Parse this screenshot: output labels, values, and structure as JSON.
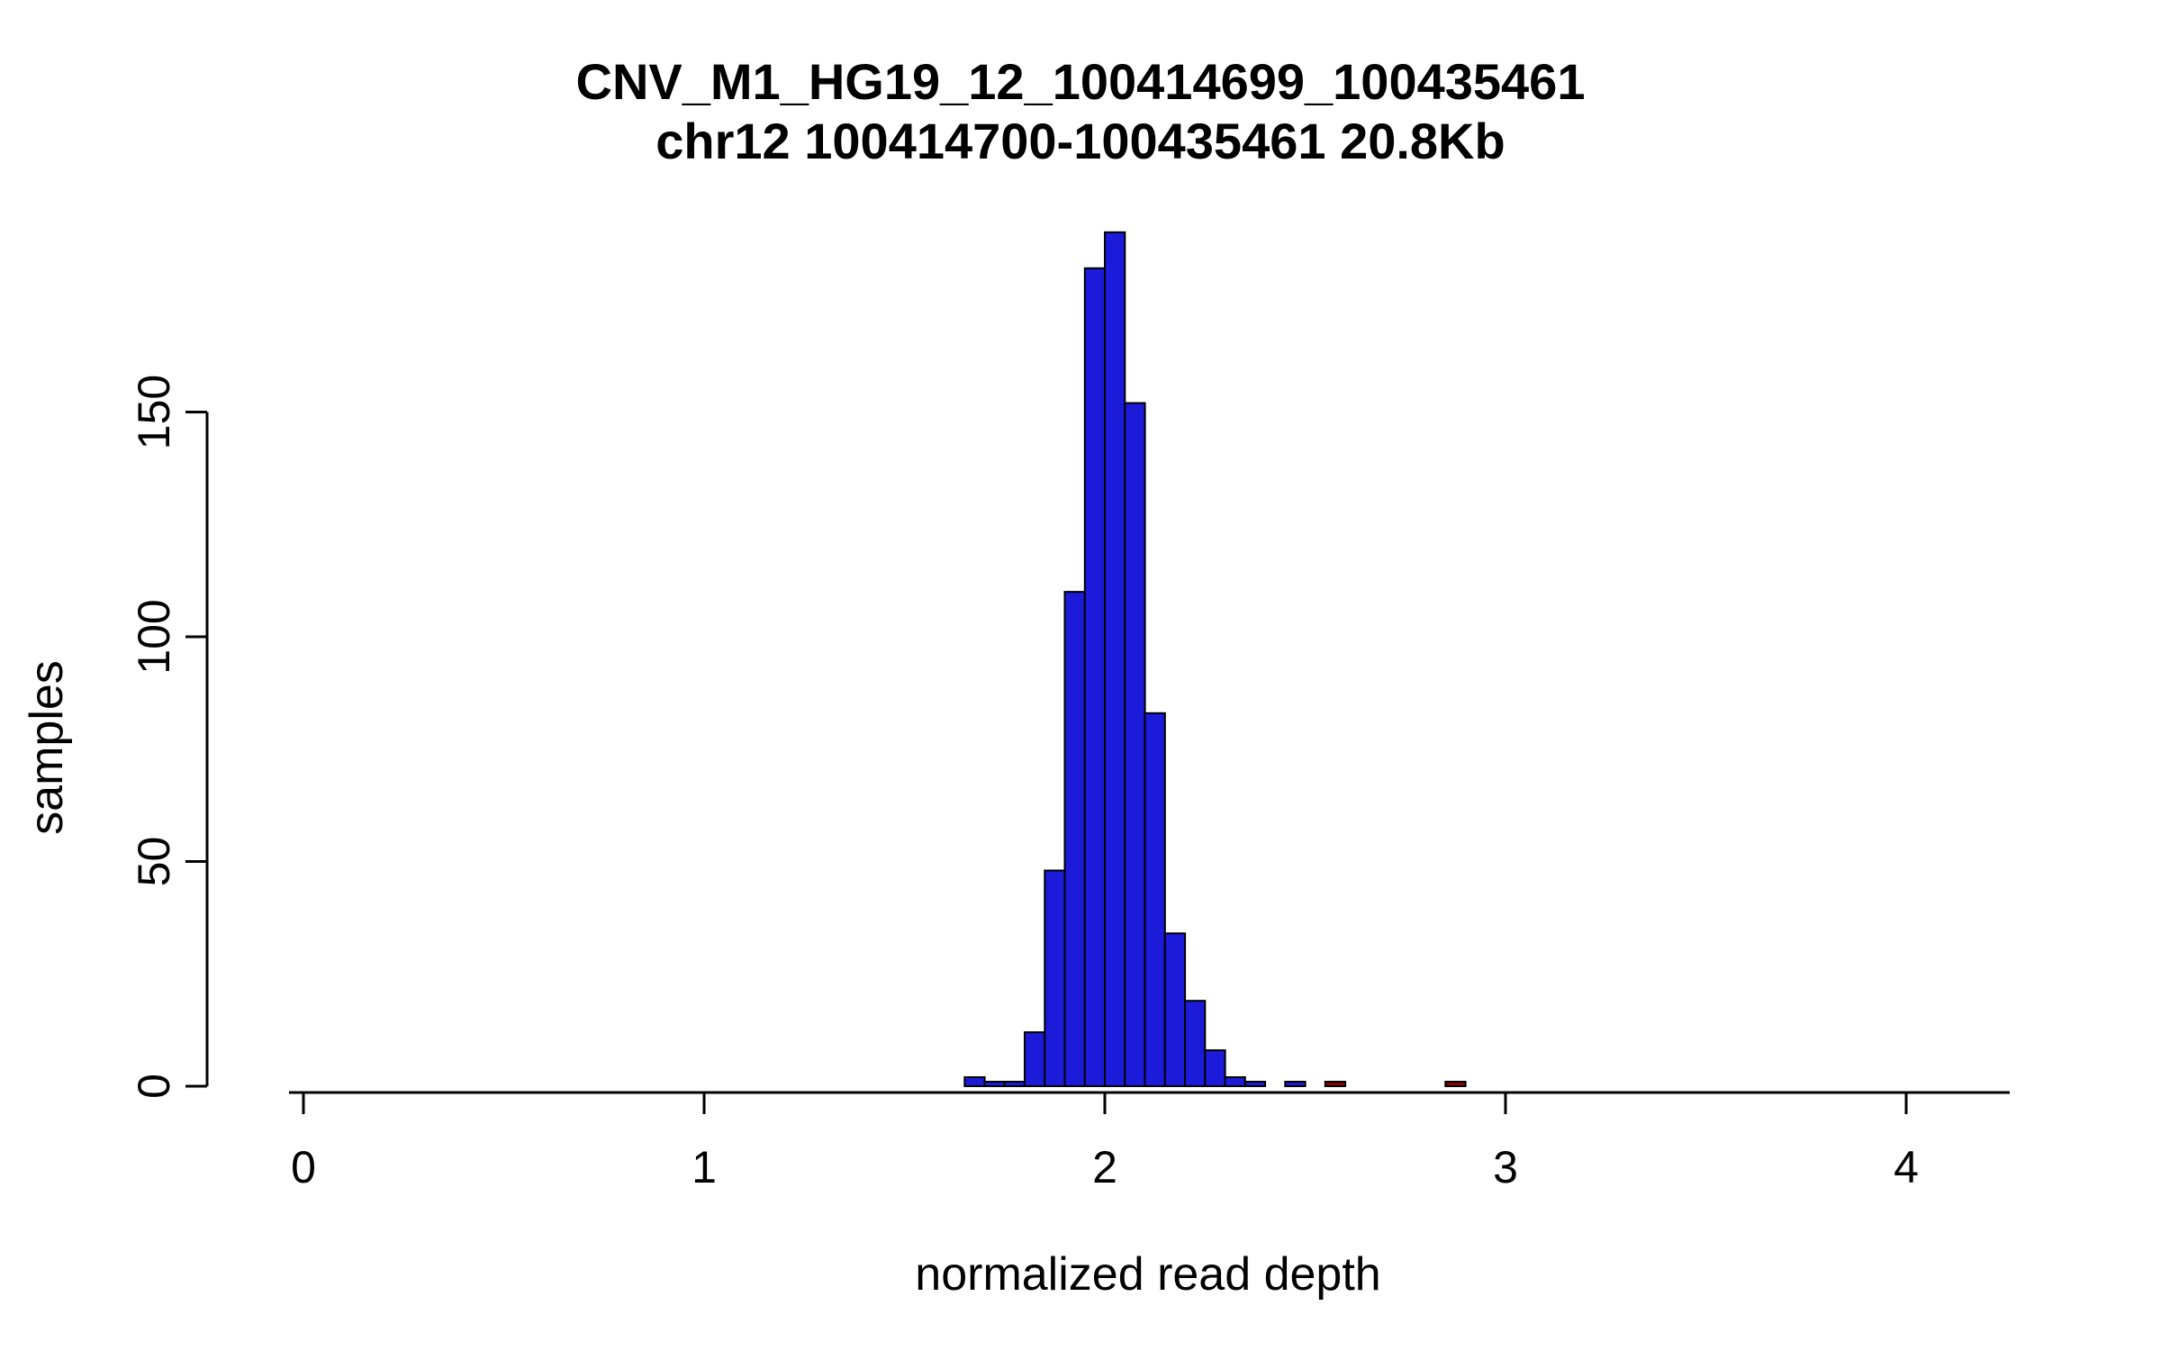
{
  "chart_data": {
    "type": "bar",
    "title": "CNV_M1_HG19_12_100414699_100435461",
    "subtitle": "chr12 100414700-100435461 20.8Kb",
    "xlabel": "normalized read depth",
    "ylabel": "samples",
    "xlim": [
      -0.04,
      4.25
    ],
    "ylim": [
      0,
      192
    ],
    "x_ticks": [
      0,
      1,
      2,
      3,
      4
    ],
    "y_ticks": [
      0,
      50,
      100,
      150
    ],
    "grid": false,
    "legend": "none",
    "bin_width": 0.05,
    "bar_fill": "#1b1bd9",
    "outlier_fill": "#8b0000",
    "bar_stroke": "#000000",
    "bins": [
      {
        "x": 1.65,
        "count": 2,
        "color": "bar"
      },
      {
        "x": 1.7,
        "count": 1,
        "color": "bar"
      },
      {
        "x": 1.75,
        "count": 1,
        "color": "bar"
      },
      {
        "x": 1.8,
        "count": 12,
        "color": "bar"
      },
      {
        "x": 1.85,
        "count": 48,
        "color": "bar"
      },
      {
        "x": 1.9,
        "count": 110,
        "color": "bar"
      },
      {
        "x": 1.95,
        "count": 182,
        "color": "bar"
      },
      {
        "x": 2.0,
        "count": 190,
        "color": "bar"
      },
      {
        "x": 2.05,
        "count": 152,
        "color": "bar"
      },
      {
        "x": 2.1,
        "count": 83,
        "color": "bar"
      },
      {
        "x": 2.15,
        "count": 34,
        "color": "bar"
      },
      {
        "x": 2.2,
        "count": 19,
        "color": "bar"
      },
      {
        "x": 2.25,
        "count": 8,
        "color": "bar"
      },
      {
        "x": 2.3,
        "count": 2,
        "color": "bar"
      },
      {
        "x": 2.35,
        "count": 1,
        "color": "bar"
      },
      {
        "x": 2.45,
        "count": 1,
        "color": "bar"
      },
      {
        "x": 2.55,
        "count": 1,
        "color": "outlier"
      },
      {
        "x": 2.85,
        "count": 1,
        "color": "outlier"
      }
    ]
  }
}
